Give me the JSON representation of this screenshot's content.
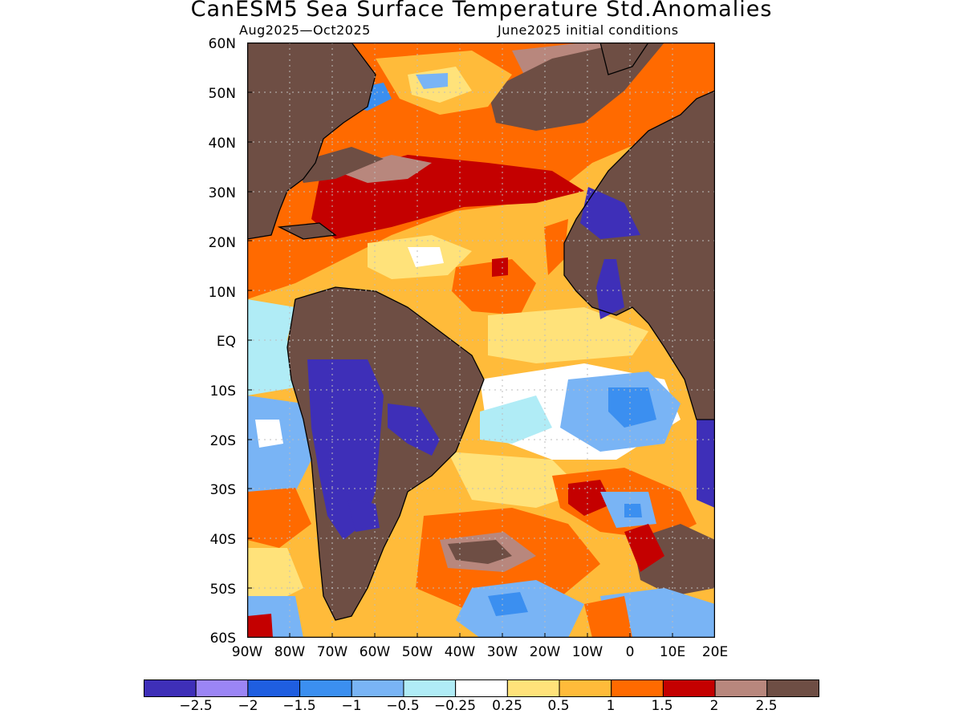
{
  "title": "CanESM5 Sea Surface Temperature Std.Anomalies",
  "subtitle_left": "Aug2025—Oct2025",
  "subtitle_right": "June2025 initial conditions",
  "lat_labels": [
    "60N",
    "50N",
    "40N",
    "30N",
    "20N",
    "10N",
    "EQ",
    "10S",
    "20S",
    "30S",
    "40S",
    "50S",
    "60S"
  ],
  "lon_labels": [
    "90W",
    "80W",
    "70W",
    "60W",
    "50W",
    "40W",
    "30W",
    "20W",
    "10W",
    "0",
    "10E",
    "20E"
  ],
  "map": {
    "lon_range": [
      -90,
      20
    ],
    "lat_range": [
      -60,
      60
    ],
    "land_color": "#6e4e44",
    "coastline_color": "#000000",
    "grid": "dotted"
  },
  "colorbar": {
    "colors": [
      "#3e2fb8",
      "#9b85f5",
      "#1f5ee0",
      "#3b8ff0",
      "#79b4f5",
      "#b0ecf6",
      "#ffffff",
      "#ffe27a",
      "#ffbb3a",
      "#ff6a00",
      "#c40000",
      "#b8877d",
      "#6e4e44"
    ],
    "labels": [
      "−2.5",
      "−2",
      "−1.5",
      "−1",
      "−0.5",
      "−0.25",
      "0.25",
      "0.5",
      "1",
      "1.5",
      "2",
      "2.5"
    ]
  }
}
